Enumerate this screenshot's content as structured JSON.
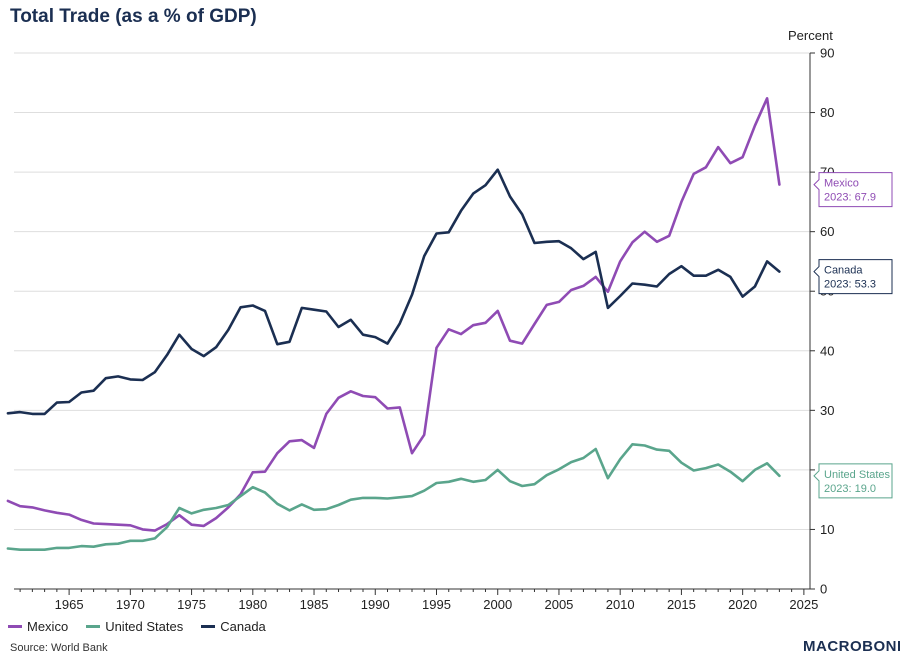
{
  "title": "Total Trade (as a % of GDP)",
  "unit_label": "Percent",
  "source": "Source: World Bank",
  "logo": "MACROBOND",
  "chart_data": {
    "type": "line",
    "title": "Total Trade (as a % of GDP)",
    "ylabel": "Percent",
    "xlabel": "",
    "xlim": [
      1960.5,
      2025.5
    ],
    "ylim": [
      0,
      90
    ],
    "x_ticks": [
      1965,
      1970,
      1975,
      1980,
      1985,
      1990,
      1995,
      2000,
      2005,
      2010,
      2015,
      2020,
      2025
    ],
    "y_ticks": [
      0,
      10,
      20,
      30,
      40,
      50,
      60,
      70,
      80,
      90
    ],
    "x_tick_labels": [
      "1965",
      "1970",
      "1975",
      "1980",
      "1985",
      "1990",
      "1995",
      "2000",
      "2005",
      "2010",
      "2015",
      "2020",
      "2025"
    ],
    "y_tick_labels": [
      "0",
      "10",
      "20",
      "30",
      "40",
      "50",
      "60",
      "70",
      "80",
      "90"
    ],
    "grid": true,
    "legend_position": "bottom-left",
    "x": [
      1960,
      1961,
      1962,
      1963,
      1964,
      1965,
      1966,
      1967,
      1968,
      1969,
      1970,
      1971,
      1972,
      1973,
      1974,
      1975,
      1976,
      1977,
      1978,
      1979,
      1980,
      1981,
      1982,
      1983,
      1984,
      1985,
      1986,
      1987,
      1988,
      1989,
      1990,
      1991,
      1992,
      1993,
      1994,
      1995,
      1996,
      1997,
      1998,
      1999,
      2000,
      2001,
      2002,
      2003,
      2004,
      2005,
      2006,
      2007,
      2008,
      2009,
      2010,
      2011,
      2012,
      2013,
      2014,
      2015,
      2016,
      2017,
      2018,
      2019,
      2020,
      2021,
      2022,
      2023
    ],
    "series": [
      {
        "name": "Mexico",
        "color": "#8f4bb4",
        "values": [
          14.8,
          13.9,
          13.7,
          13.2,
          12.8,
          12.5,
          11.6,
          11.0,
          10.9,
          10.8,
          10.7,
          10.0,
          9.8,
          10.9,
          12.4,
          10.8,
          10.6,
          11.9,
          13.7,
          15.9,
          19.6,
          19.7,
          22.8,
          24.8,
          25.0,
          23.7,
          29.4,
          32.1,
          33.2,
          32.4,
          32.2,
          30.3,
          30.5,
          22.8,
          25.9,
          40.5,
          43.6,
          42.8,
          44.3,
          44.7,
          46.7,
          41.7,
          41.2,
          44.5,
          47.7,
          48.2,
          50.2,
          50.9,
          52.4,
          49.9,
          55.0,
          58.2,
          60.0,
          58.3,
          59.3,
          65.0,
          69.7,
          70.8,
          74.2,
          71.5,
          72.5,
          77.8,
          82.4,
          67.9
        ]
      },
      {
        "name": "United States",
        "color": "#5aa58c",
        "values": [
          6.8,
          6.6,
          6.6,
          6.6,
          6.9,
          6.9,
          7.2,
          7.1,
          7.5,
          7.6,
          8.1,
          8.1,
          8.5,
          10.4,
          13.6,
          12.7,
          13.3,
          13.6,
          14.1,
          15.6,
          17.1,
          16.2,
          14.3,
          13.2,
          14.2,
          13.3,
          13.4,
          14.1,
          15.0,
          15.3,
          15.3,
          15.2,
          15.4,
          15.6,
          16.5,
          17.8,
          18.0,
          18.5,
          18.0,
          18.3,
          20.0,
          18.1,
          17.3,
          17.6,
          19.1,
          20.1,
          21.3,
          22.0,
          23.5,
          18.6,
          21.8,
          24.3,
          24.1,
          23.4,
          23.2,
          21.2,
          19.9,
          20.3,
          20.9,
          19.7,
          18.1,
          20.0,
          21.1,
          19.0
        ]
      },
      {
        "name": "Canada",
        "color": "#1b2f52",
        "values": [
          29.5,
          29.7,
          29.4,
          29.4,
          31.3,
          31.4,
          33.0,
          33.3,
          35.4,
          35.7,
          35.2,
          35.1,
          36.4,
          39.3,
          42.7,
          40.3,
          39.1,
          40.6,
          43.5,
          47.3,
          47.6,
          46.7,
          41.1,
          41.5,
          47.2,
          46.9,
          46.6,
          44.0,
          45.2,
          42.7,
          42.3,
          41.2,
          44.6,
          49.4,
          55.9,
          59.7,
          59.9,
          63.5,
          66.4,
          67.8,
          70.4,
          65.9,
          62.9,
          58.1,
          58.3,
          58.4,
          57.2,
          55.4,
          56.6,
          47.2,
          49.2,
          51.3,
          51.1,
          50.8,
          52.9,
          54.2,
          52.6,
          52.6,
          53.6,
          52.4,
          49.1,
          50.8,
          55.0,
          53.3
        ]
      }
    ],
    "end_labels": [
      {
        "series": "Mexico",
        "name": "Mexico",
        "text": "2023: 67.9",
        "value": 67.9
      },
      {
        "series": "Canada",
        "name": "Canada",
        "text": "2023: 53.3",
        "value": 53.3
      },
      {
        "series": "United States",
        "name": "United States",
        "text": "2023: 19.0",
        "value": 19.0
      }
    ]
  }
}
